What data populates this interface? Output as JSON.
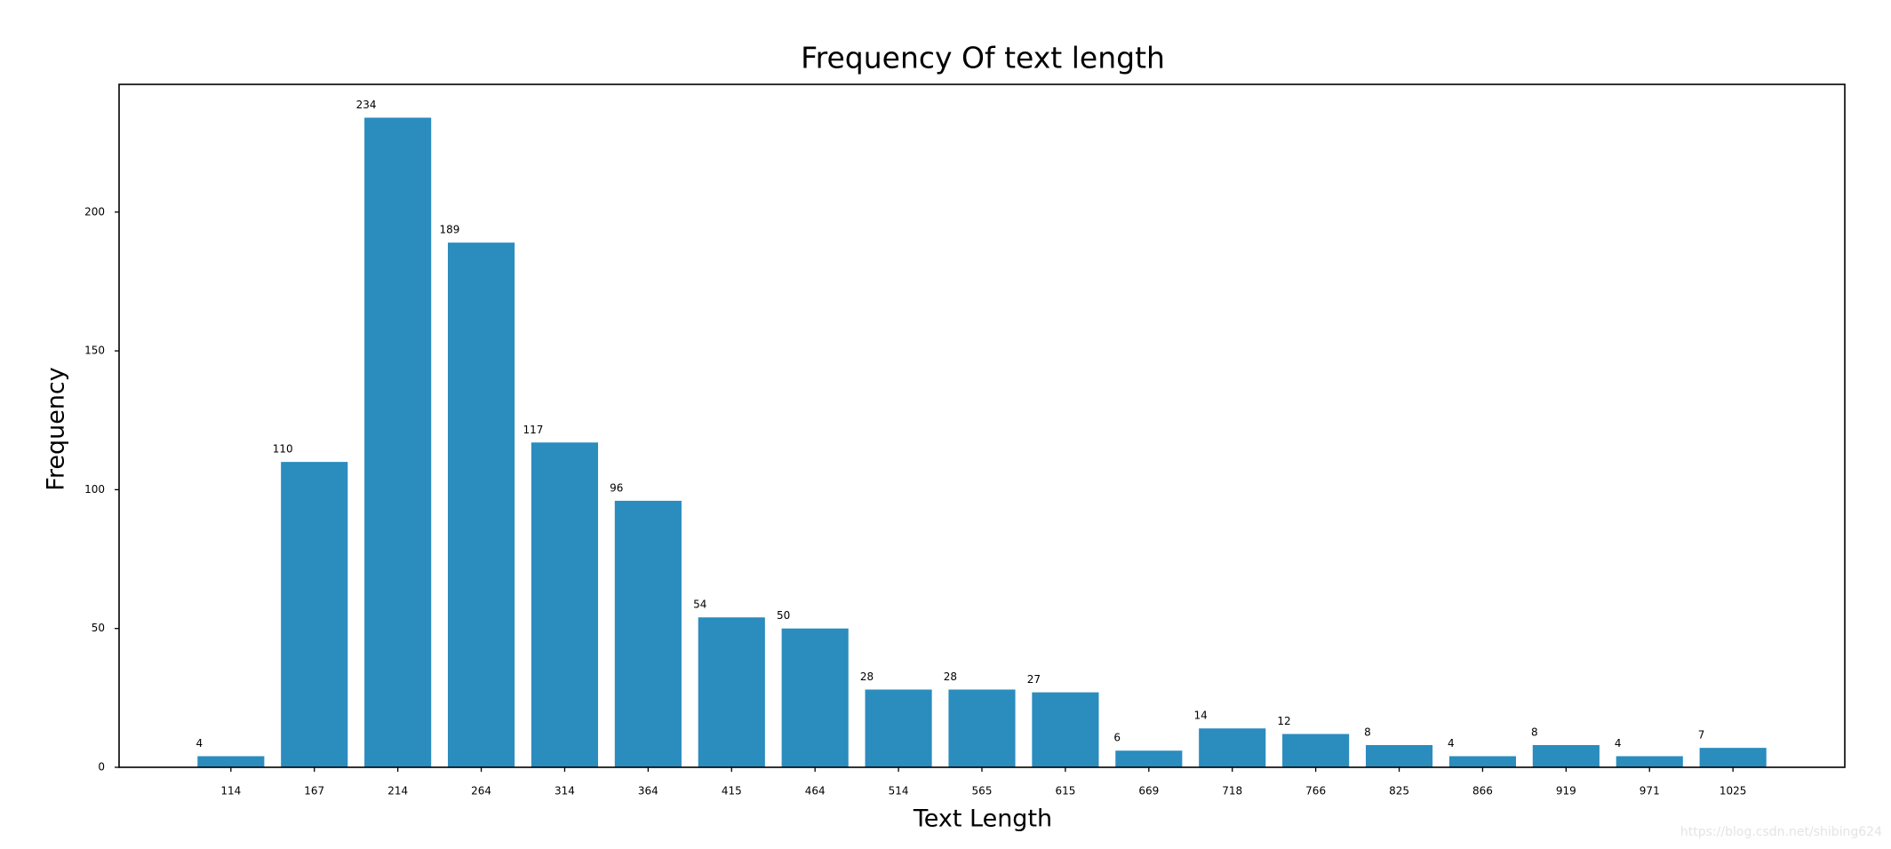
{
  "chart_data": {
    "type": "bar",
    "title": "Frequency Of text length",
    "xlabel": "Text Length",
    "ylabel": "Frequency",
    "categories": [
      "114",
      "167",
      "214",
      "264",
      "314",
      "364",
      "415",
      "464",
      "514",
      "565",
      "615",
      "669",
      "718",
      "766",
      "825",
      "866",
      "919",
      "971",
      "1025"
    ],
    "values": [
      4,
      110,
      234,
      189,
      117,
      96,
      54,
      50,
      28,
      28,
      27,
      6,
      14,
      12,
      8,
      4,
      8,
      4,
      7
    ],
    "color": "#2b8cbe",
    "ylim": [
      0,
      246
    ],
    "yticks": [
      0,
      50,
      100,
      150,
      200
    ],
    "grid": false,
    "watermark": "https://blog.csdn.net/shibing624"
  }
}
